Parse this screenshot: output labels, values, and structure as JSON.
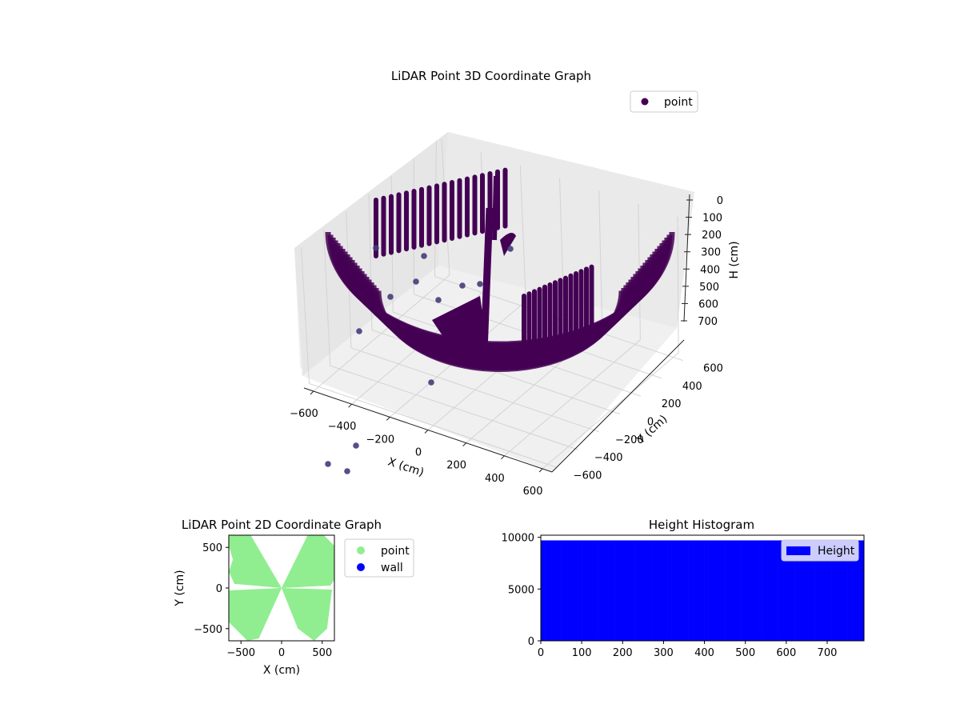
{
  "chart_data": [
    {
      "type": "scatter",
      "title": "LiDAR Point 3D Coordinate Graph",
      "xlabel": "X (cm)",
      "ylabel": "Y (cm)",
      "zlabel": "H (cm)",
      "x_ticks": [
        "−600",
        "−400",
        "−200",
        "0",
        "200",
        "400",
        "600"
      ],
      "y_ticks": [
        "−600",
        "−400",
        "−200",
        "0",
        "200",
        "400",
        "600"
      ],
      "z_ticks": [
        "0",
        "100",
        "200",
        "300",
        "400",
        "500",
        "600",
        "700"
      ],
      "xlim": [
        -650,
        650
      ],
      "ylim": [
        -650,
        650
      ],
      "zlim": [
        0,
        790
      ],
      "z_inverted": true,
      "grid": true,
      "legend": {
        "placement": "upper-right",
        "entries": [
          "point"
        ]
      },
      "series": [
        {
          "name": "point",
          "color": "#440154",
          "shape": "curved bowl-like surface of rings plus vertical column strips"
        }
      ]
    },
    {
      "type": "scatter",
      "title": "LiDAR Point 2D Coordinate Graph",
      "xlabel": "X (cm)",
      "ylabel": "Y (cm)",
      "x_ticks": [
        "−500",
        "0",
        "500"
      ],
      "y_ticks": [
        "500",
        "0",
        "−500"
      ],
      "xlim": [
        -650,
        650
      ],
      "ylim": [
        -650,
        650
      ],
      "legend": {
        "placement": "outside-right",
        "entries": [
          "point",
          "wall"
        ]
      },
      "series": [
        {
          "name": "point",
          "color": "#90ee90",
          "shape": "bow-tie region through origin"
        },
        {
          "name": "wall",
          "color": "#0000ff",
          "points": []
        }
      ]
    },
    {
      "type": "bar",
      "title": "Height Histogram",
      "xlabel": "",
      "ylabel": "",
      "x_ticks": [
        "0",
        "100",
        "200",
        "300",
        "400",
        "500",
        "600",
        "700"
      ],
      "y_ticks": [
        "0",
        "5000",
        "10000"
      ],
      "xlim": [
        0,
        790
      ],
      "ylim": [
        0,
        10200
      ],
      "bins": {
        "start": 0,
        "end": 790,
        "count": 79
      },
      "value_per_bin": 9700,
      "color": "#0000ff",
      "legend": {
        "placement": "upper-right",
        "entries": [
          "Height"
        ]
      }
    }
  ]
}
